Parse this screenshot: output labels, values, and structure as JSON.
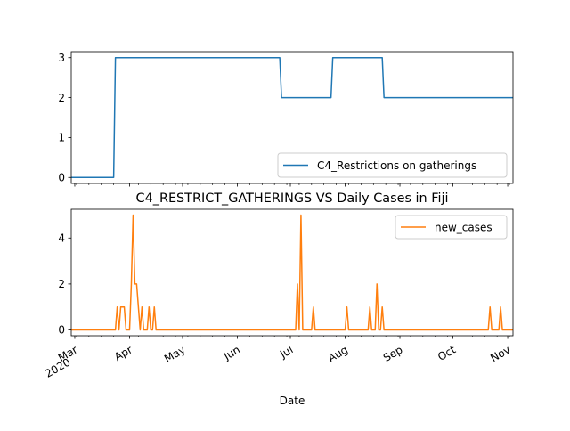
{
  "chart_data": [
    {
      "type": "line",
      "title": "",
      "xlabel": "",
      "ylabel": "",
      "ylim": [
        -0.15,
        3.15
      ],
      "xlim": [
        "2020-02-28",
        "2020-11-04"
      ],
      "y_ticks": [
        "0",
        "1",
        "2",
        "3"
      ],
      "legend_position": "lower-right",
      "series": [
        {
          "name": "C4_Restrictions on gatherings",
          "color": "#1f77b4",
          "x": [
            "2020-02-28",
            "2020-03-23",
            "2020-03-24",
            "2020-06-25",
            "2020-06-26",
            "2020-07-24",
            "2020-07-25",
            "2020-08-22",
            "2020-08-23",
            "2020-11-04"
          ],
          "values": [
            0,
            0,
            3,
            3,
            2,
            2,
            3,
            3,
            2,
            2
          ]
        }
      ]
    },
    {
      "type": "line",
      "title": "C4_RESTRICT_GATHERINGS VS Daily Cases in Fiji",
      "xlabel": "Date",
      "ylabel": "",
      "ylim": [
        -0.25,
        5.25
      ],
      "xlim": [
        "2020-02-28",
        "2020-11-04"
      ],
      "y_ticks": [
        "0",
        "2",
        "4"
      ],
      "x_ticks": [
        {
          "date": "2020-03-01",
          "label": "Mar",
          "sub": "2020"
        },
        {
          "date": "2020-04-01",
          "label": "Apr",
          "sub": ""
        },
        {
          "date": "2020-05-01",
          "label": "May",
          "sub": ""
        },
        {
          "date": "2020-06-01",
          "label": "Jun",
          "sub": ""
        },
        {
          "date": "2020-07-01",
          "label": "Jul",
          "sub": ""
        },
        {
          "date": "2020-08-01",
          "label": "Aug",
          "sub": ""
        },
        {
          "date": "2020-09-01",
          "label": "Sep",
          "sub": ""
        },
        {
          "date": "2020-10-01",
          "label": "Oct",
          "sub": ""
        },
        {
          "date": "2020-11-01",
          "label": "Nov",
          "sub": ""
        }
      ],
      "legend_position": "upper-right",
      "series": [
        {
          "name": "new_cases",
          "color": "#ff7f0e",
          "x": [
            "2020-02-28",
            "2020-03-24",
            "2020-03-25",
            "2020-03-26",
            "2020-03-27",
            "2020-03-28",
            "2020-03-29",
            "2020-03-30",
            "2020-03-31",
            "2020-04-01",
            "2020-04-02",
            "2020-04-03",
            "2020-04-04",
            "2020-04-05",
            "2020-04-06",
            "2020-04-07",
            "2020-04-08",
            "2020-04-09",
            "2020-04-10",
            "2020-04-11",
            "2020-04-12",
            "2020-04-13",
            "2020-04-14",
            "2020-04-15",
            "2020-04-16",
            "2020-07-04",
            "2020-07-05",
            "2020-07-06",
            "2020-07-07",
            "2020-07-08",
            "2020-07-09",
            "2020-07-10",
            "2020-07-13",
            "2020-07-14",
            "2020-07-15",
            "2020-08-01",
            "2020-08-02",
            "2020-08-03",
            "2020-08-14",
            "2020-08-15",
            "2020-08-16",
            "2020-08-18",
            "2020-08-19",
            "2020-08-20",
            "2020-08-21",
            "2020-08-22",
            "2020-08-23",
            "2020-10-21",
            "2020-10-22",
            "2020-10-23",
            "2020-10-27",
            "2020-10-28",
            "2020-10-29",
            "2020-11-04"
          ],
          "values": [
            0,
            0,
            1,
            0,
            1,
            1,
            1,
            0,
            0,
            0,
            2,
            5,
            2,
            2,
            1,
            0,
            1,
            0,
            0,
            0,
            1,
            0,
            0,
            1,
            0,
            0,
            2,
            0,
            5,
            0,
            0,
            0,
            0,
            1,
            0,
            0,
            1,
            0,
            0,
            1,
            0,
            0,
            2,
            0,
            0,
            1,
            0,
            0,
            1,
            0,
            0,
            1,
            0,
            0
          ]
        }
      ]
    }
  ]
}
